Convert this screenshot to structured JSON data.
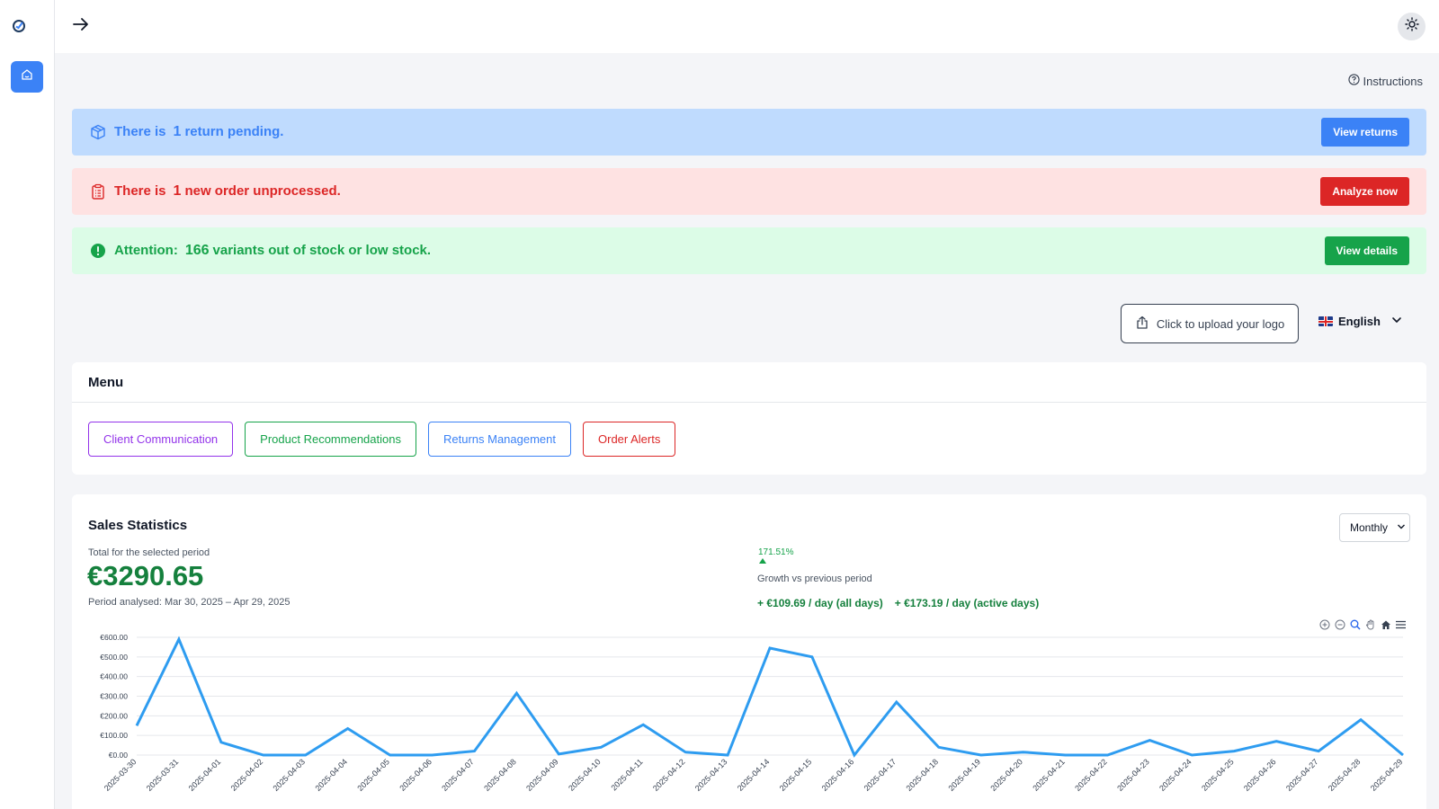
{
  "topbar": {
    "expand_icon": "arrow-right-icon",
    "theme_icon": "sun-icon"
  },
  "sidebar": {
    "logo_icon": "app-logo-icon",
    "home_icon": "home-icon"
  },
  "instructions": {
    "label": "Instructions",
    "icon": "help-circle-icon"
  },
  "alerts": {
    "returns": {
      "prefix": "There is",
      "count": "1",
      "suffix": "return pending.",
      "button": "View returns",
      "icon": "package-icon",
      "color": "#3b82f6"
    },
    "orders": {
      "prefix": "There is",
      "count": "1",
      "suffix": "new order unprocessed.",
      "button": "Analyze now",
      "icon": "clipboard-icon",
      "color": "#dc2626"
    },
    "stock": {
      "prefix": "Attention:",
      "count": "166",
      "suffix": "variants out of stock or low stock.",
      "button": "View details",
      "icon": "alert-circle-icon",
      "color": "#16a34a"
    }
  },
  "upload": {
    "label": "Click to upload your logo",
    "icon": "upload-icon"
  },
  "language": {
    "label": "English",
    "flag": "uk-flag-icon"
  },
  "menu": {
    "title": "Menu",
    "items": [
      "Client Communication",
      "Product Recommendations",
      "Returns Management",
      "Order Alerts"
    ]
  },
  "stats": {
    "title": "Sales Statistics",
    "period_select": "Monthly",
    "total_label": "Total for the selected period",
    "total_value": "€3290.65",
    "period_text": "Period analysed: Mar 30, 2025 – Apr 29, 2025",
    "growth_pct": "171.51%",
    "growth_label": "Growth vs previous period",
    "per_day_all": "+ €109.69 / day (all days)",
    "per_day_active": "+ €173.19 / day (active days)"
  },
  "chart_data": {
    "type": "line",
    "color": "#2e9cf0",
    "ylim": [
      0,
      600
    ],
    "y_ticks": [
      "€0.00",
      "€100.00",
      "€200.00",
      "€300.00",
      "€400.00",
      "€500.00",
      "€600.00"
    ],
    "grid": true,
    "x": [
      "2025-03-30",
      "2025-03-31",
      "2025-04-01",
      "2025-04-02",
      "2025-04-03",
      "2025-04-04",
      "2025-04-05",
      "2025-04-06",
      "2025-04-07",
      "2025-04-08",
      "2025-04-09",
      "2025-04-10",
      "2025-04-11",
      "2025-04-12",
      "2025-04-13",
      "2025-04-14",
      "2025-04-15",
      "2025-04-16",
      "2025-04-17",
      "2025-04-18",
      "2025-04-19",
      "2025-04-20",
      "2025-04-21",
      "2025-04-22",
      "2025-04-23",
      "2025-04-24",
      "2025-04-25",
      "2025-04-26",
      "2025-04-27",
      "2025-04-28",
      "2025-04-29"
    ],
    "values": [
      150,
      590,
      65,
      0,
      0,
      135,
      0,
      0,
      20,
      315,
      5,
      40,
      155,
      15,
      0,
      545,
      500,
      0,
      270,
      40,
      0,
      15,
      0,
      0,
      75,
      0,
      20,
      70,
      20,
      180,
      0
    ],
    "toolbar_icons": [
      "zoom-in-icon",
      "zoom-out-icon",
      "zoom-select-icon",
      "pan-icon",
      "reset-home-icon",
      "chart-menu-icon"
    ]
  }
}
